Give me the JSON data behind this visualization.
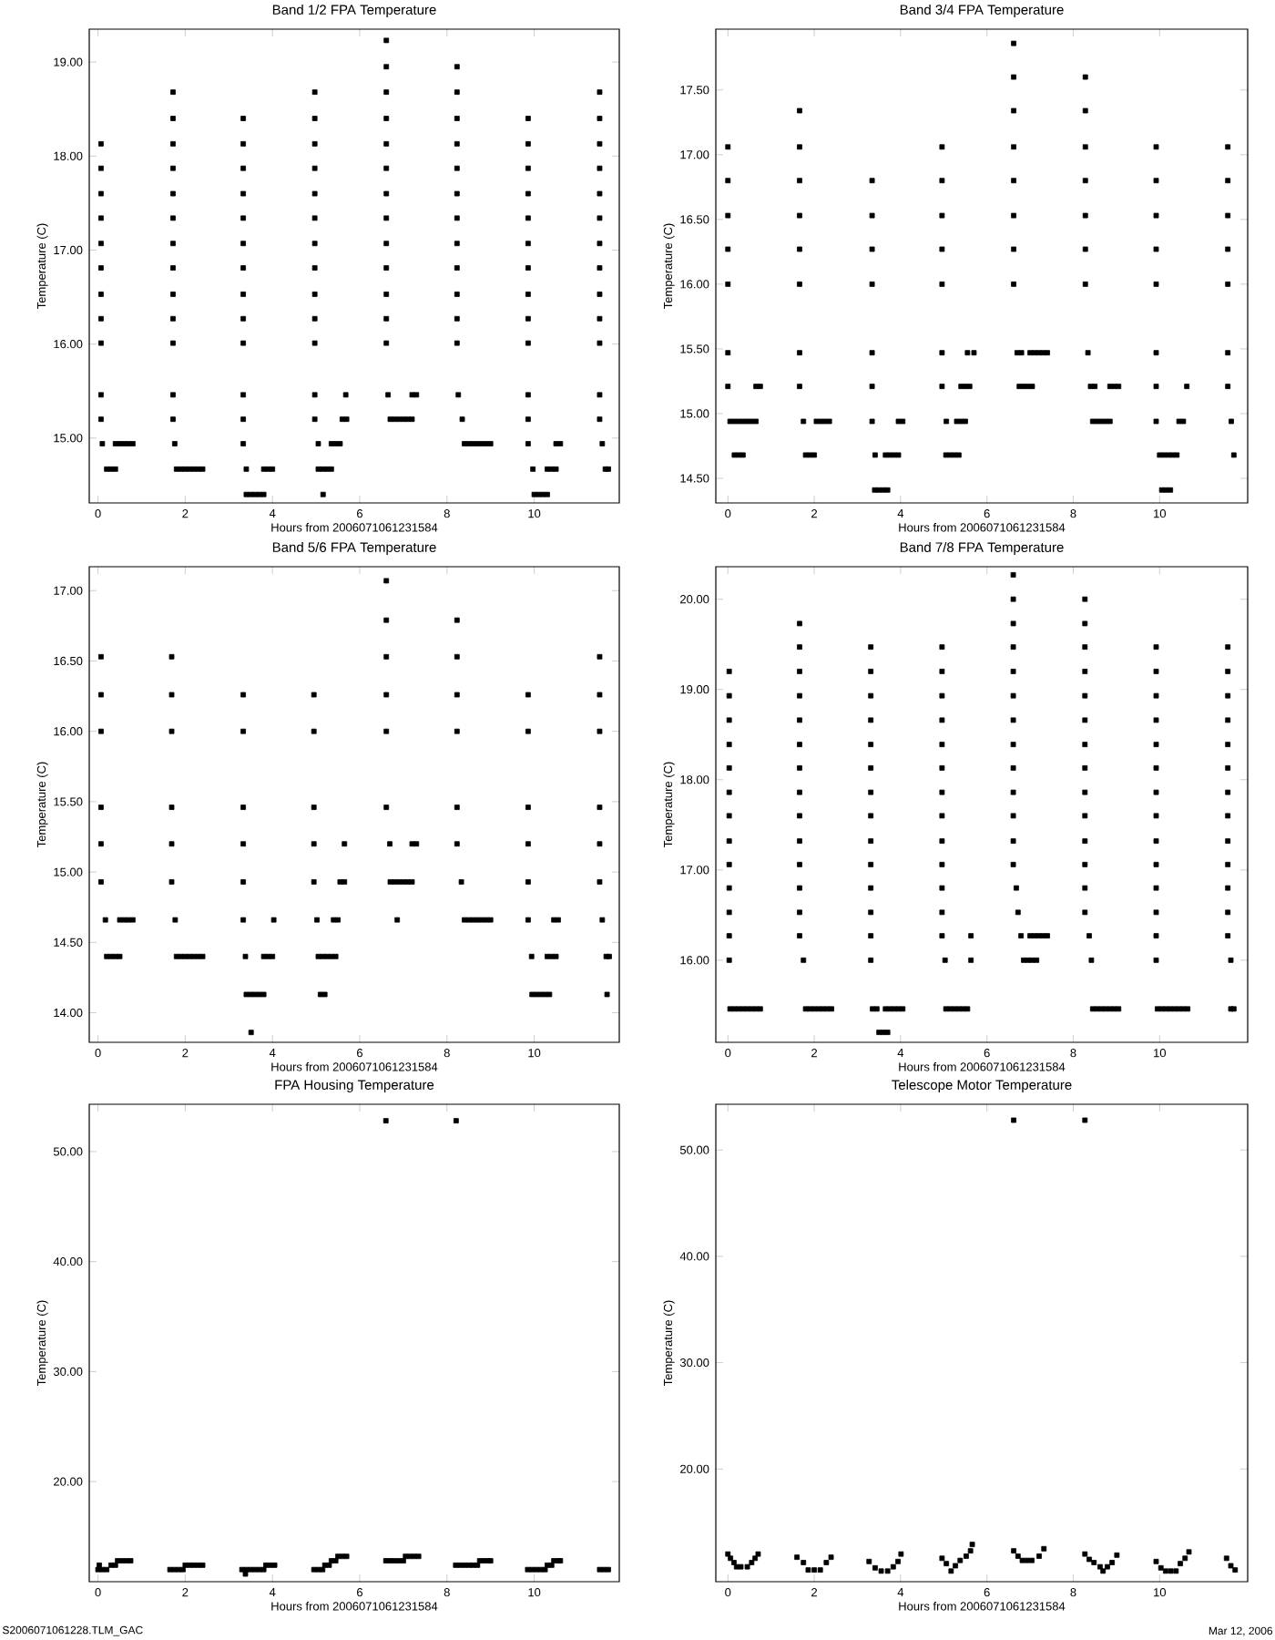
{
  "chart_data": [
    {
      "type": "scatter",
      "title": "Band 1/2 FPA Temperature",
      "xlabel": "Hours from 2006071061231584",
      "ylabel": "Temperature (C)",
      "color": "#000000",
      "marker": "square",
      "xlim": [
        -0.2,
        11.95
      ],
      "xticks": [
        0,
        2,
        4,
        6,
        8,
        10
      ],
      "ylim": [
        14.31,
        19.35
      ],
      "yticks": [
        {
          "value": 15,
          "label": "15.00"
        },
        {
          "value": 16,
          "label": "16.00"
        },
        {
          "value": 17,
          "label": "17.00"
        },
        {
          "value": 18,
          "label": "18.00"
        },
        {
          "value": 19,
          "label": "19.00"
        }
      ],
      "x": [
        0.07,
        0.07,
        0.07,
        0.07,
        0.07,
        0.07,
        0.07,
        0.07,
        0.07,
        0.07,
        0.07,
        0.1,
        0.4,
        0.5,
        0.6,
        0.7,
        0.8,
        0.2,
        0.3,
        0.4,
        1.72,
        1.72,
        1.72,
        1.72,
        1.72,
        1.72,
        1.72,
        1.72,
        1.72,
        1.72,
        1.72,
        1.72,
        1.72,
        1.76,
        1.8,
        1.9,
        2.0,
        2.1,
        2.2,
        2.3,
        2.4,
        3.33,
        3.33,
        3.33,
        3.33,
        3.33,
        3.33,
        3.33,
        3.33,
        3.33,
        3.33,
        3.33,
        3.33,
        3.33,
        3.4,
        3.8,
        3.9,
        4.0,
        3.4,
        3.5,
        3.6,
        3.7,
        3.8,
        4.97,
        4.97,
        4.97,
        4.97,
        4.97,
        4.97,
        4.97,
        4.97,
        4.97,
        4.97,
        4.97,
        4.97,
        4.97,
        5.05,
        5.35,
        5.45,
        5.55,
        5.6,
        5.7,
        5.68,
        5.05,
        5.15,
        5.25,
        5.35,
        5.16,
        6.61,
        6.61,
        6.61,
        6.61,
        6.61,
        6.61,
        6.61,
        6.61,
        6.61,
        6.61,
        6.61,
        6.61,
        6.61,
        6.65,
        7.2,
        7.3,
        6.7,
        6.8,
        6.9,
        7.0,
        7.1,
        7.2,
        8.23,
        8.23,
        8.23,
        8.23,
        8.23,
        8.23,
        8.23,
        8.23,
        8.23,
        8.23,
        8.23,
        8.23,
        8.26,
        8.35,
        8.4,
        8.5,
        8.6,
        8.7,
        8.8,
        8.9,
        9.0,
        9.86,
        9.86,
        9.86,
        9.86,
        9.86,
        9.86,
        9.86,
        9.86,
        9.86,
        9.86,
        9.86,
        9.86,
        9.86,
        9.97,
        10.3,
        10.4,
        10.5,
        10.5,
        10.6,
        10.0,
        10.1,
        10.2,
        10.3,
        11.5,
        11.5,
        11.5,
        11.5,
        11.5,
        11.5,
        11.5,
        11.5,
        11.5,
        11.5,
        11.5,
        11.5,
        11.5,
        11.56,
        11.63,
        11.7
      ],
      "values": [
        18.13,
        17.87,
        17.6,
        17.34,
        17.07,
        16.81,
        16.53,
        16.27,
        16.01,
        15.46,
        15.2,
        14.94,
        14.94,
        14.94,
        14.94,
        14.94,
        14.94,
        14.67,
        14.67,
        14.67,
        18.68,
        18.4,
        18.13,
        17.87,
        17.6,
        17.34,
        17.07,
        16.81,
        16.53,
        16.27,
        16.01,
        15.46,
        15.2,
        14.94,
        14.67,
        14.67,
        14.67,
        14.67,
        14.67,
        14.67,
        14.67,
        18.4,
        18.13,
        17.87,
        17.6,
        17.34,
        17.07,
        16.81,
        16.53,
        16.27,
        16.01,
        15.46,
        15.2,
        14.94,
        14.67,
        14.67,
        14.67,
        14.67,
        14.4,
        14.4,
        14.4,
        14.4,
        14.4,
        18.68,
        18.4,
        18.13,
        17.87,
        17.6,
        17.34,
        17.07,
        16.81,
        16.53,
        16.27,
        16.01,
        15.46,
        15.2,
        14.94,
        14.94,
        14.94,
        14.94,
        15.2,
        15.2,
        15.46,
        14.67,
        14.67,
        14.67,
        14.67,
        14.4,
        19.23,
        18.95,
        18.68,
        18.4,
        18.13,
        17.87,
        17.6,
        17.34,
        17.07,
        16.81,
        16.53,
        16.27,
        16.01,
        15.46,
        15.46,
        15.46,
        15.2,
        15.2,
        15.2,
        15.2,
        15.2,
        15.2,
        18.95,
        18.68,
        18.4,
        18.13,
        17.87,
        17.6,
        17.34,
        17.07,
        16.81,
        16.53,
        16.27,
        16.01,
        15.46,
        15.2,
        14.94,
        14.94,
        14.94,
        14.94,
        14.94,
        14.94,
        14.94,
        18.4,
        18.13,
        17.87,
        17.6,
        17.34,
        17.07,
        16.81,
        16.53,
        16.27,
        16.01,
        15.46,
        15.2,
        14.94,
        14.67,
        14.67,
        14.67,
        14.67,
        14.94,
        14.94,
        14.4,
        14.4,
        14.4,
        14.4,
        18.68,
        18.4,
        18.13,
        17.87,
        17.6,
        17.34,
        17.07,
        16.81,
        16.53,
        16.27,
        16.01,
        15.46,
        15.2,
        14.94,
        14.67,
        14.67
      ]
    },
    {
      "type": "scatter",
      "title": "Band 3/4 FPA Temperature",
      "xlabel": "Hours from 2006071061231584",
      "ylabel": "Temperature (C)",
      "color": "#000000",
      "marker": "square",
      "xlim": [
        -0.28,
        12.04
      ],
      "xticks": [
        0,
        2,
        4,
        6,
        8,
        10
      ],
      "ylim": [
        14.31,
        17.97
      ],
      "yticks": [
        {
          "value": 14.5,
          "label": "14.50"
        },
        {
          "value": 15,
          "label": "15.00"
        },
        {
          "value": 15.5,
          "label": "15.50"
        },
        {
          "value": 16,
          "label": "16.00"
        },
        {
          "value": 16.5,
          "label": "16.50"
        },
        {
          "value": 17,
          "label": "17.00"
        },
        {
          "value": 17.5,
          "label": "17.50"
        }
      ],
      "x": [
        0.0,
        0.0,
        0.0,
        0.0,
        0.0,
        0.0,
        0.0,
        0.05,
        0.15,
        0.25,
        0.35,
        0.45,
        0.55,
        0.65,
        0.65,
        0.75,
        0.15,
        0.25,
        0.35,
        1.66,
        1.66,
        1.66,
        1.66,
        1.66,
        1.66,
        1.66,
        1.66,
        1.75,
        2.05,
        2.15,
        2.25,
        2.35,
        1.8,
        1.9,
        2.0,
        3.34,
        3.34,
        3.34,
        3.34,
        3.34,
        3.34,
        3.34,
        3.41,
        3.65,
        3.75,
        3.85,
        3.95,
        3.95,
        4.05,
        3.4,
        3.5,
        3.6,
        3.7,
        4.96,
        4.96,
        4.96,
        4.96,
        4.96,
        4.96,
        4.96,
        5.06,
        5.55,
        5.7,
        5.4,
        5.5,
        5.6,
        5.3,
        5.4,
        5.5,
        5.05,
        5.15,
        5.25,
        5.35,
        6.62,
        6.62,
        6.62,
        6.62,
        6.62,
        6.62,
        6.62,
        6.62,
        6.7,
        6.8,
        7.0,
        7.1,
        7.2,
        7.3,
        7.4,
        6.75,
        6.85,
        6.95,
        7.05,
        8.28,
        8.28,
        8.28,
        8.28,
        8.28,
        8.28,
        8.28,
        8.34,
        8.4,
        8.5,
        8.85,
        8.95,
        9.05,
        8.45,
        8.55,
        8.65,
        8.75,
        8.85,
        9.92,
        9.92,
        9.92,
        9.92,
        9.92,
        9.92,
        9.92,
        9.92,
        10.0,
        10.1,
        10.2,
        10.3,
        10.4,
        10.45,
        10.55,
        10.63,
        10.05,
        10.15,
        10.25,
        11.58,
        11.58,
        11.58,
        11.58,
        11.58,
        11.58,
        11.58,
        11.66,
        11.72
      ],
      "values": [
        17.06,
        16.8,
        16.53,
        16.27,
        16.0,
        15.47,
        15.21,
        14.94,
        14.94,
        14.94,
        14.94,
        14.94,
        14.94,
        14.94,
        15.21,
        15.21,
        14.68,
        14.68,
        14.68,
        17.34,
        17.06,
        16.8,
        16.53,
        16.27,
        16.0,
        15.47,
        15.21,
        14.94,
        14.94,
        14.94,
        14.94,
        14.94,
        14.68,
        14.68,
        14.68,
        16.8,
        16.53,
        16.27,
        16.0,
        15.47,
        15.21,
        14.94,
        14.68,
        14.68,
        14.68,
        14.68,
        14.68,
        14.94,
        14.94,
        14.41,
        14.41,
        14.41,
        14.41,
        17.06,
        16.8,
        16.53,
        16.27,
        16.0,
        15.47,
        15.21,
        14.94,
        15.47,
        15.47,
        15.21,
        15.21,
        15.21,
        14.94,
        14.94,
        14.94,
        14.68,
        14.68,
        14.68,
        14.68,
        17.86,
        17.6,
        17.34,
        17.06,
        16.8,
        16.53,
        16.27,
        16.0,
        15.47,
        15.47,
        15.47,
        15.47,
        15.47,
        15.47,
        15.47,
        15.21,
        15.21,
        15.21,
        15.21,
        17.6,
        17.34,
        17.06,
        16.8,
        16.53,
        16.27,
        16.0,
        15.47,
        15.21,
        15.21,
        15.21,
        15.21,
        15.21,
        14.94,
        14.94,
        14.94,
        14.94,
        14.94,
        17.06,
        16.8,
        16.53,
        16.27,
        16.0,
        15.47,
        15.21,
        14.94,
        14.68,
        14.68,
        14.68,
        14.68,
        14.68,
        14.94,
        14.94,
        15.21,
        14.41,
        14.41,
        14.41,
        17.06,
        16.8,
        16.53,
        16.27,
        16.0,
        15.47,
        15.21,
        14.94,
        14.68
      ]
    },
    {
      "type": "scatter",
      "title": "Band 5/6 FPA Temperature",
      "xlabel": "Hours from 2006071061231584",
      "ylabel": "Temperature (C)",
      "color": "#000000",
      "marker": "square",
      "xlim": [
        -0.2,
        11.95
      ],
      "xticks": [
        0,
        2,
        4,
        6,
        8,
        10
      ],
      "ylim": [
        13.79,
        17.17
      ],
      "yticks": [
        {
          "value": 14,
          "label": "14.00"
        },
        {
          "value": 14.5,
          "label": "14.50"
        },
        {
          "value": 15,
          "label": "15.00"
        },
        {
          "value": 15.5,
          "label": "15.50"
        },
        {
          "value": 16,
          "label": "16.00"
        },
        {
          "value": 16.5,
          "label": "16.50"
        },
        {
          "value": 17,
          "label": "17.00"
        }
      ],
      "x": [
        0.07,
        0.07,
        0.07,
        0.07,
        0.07,
        0.07,
        0.17,
        0.5,
        0.6,
        0.7,
        0.8,
        0.2,
        0.3,
        0.4,
        0.5,
        1.69,
        1.69,
        1.69,
        1.69,
        1.69,
        1.69,
        1.77,
        1.8,
        1.9,
        2.0,
        2.1,
        2.2,
        2.3,
        2.4,
        3.33,
        3.33,
        3.33,
        3.33,
        3.33,
        3.33,
        3.38,
        3.8,
        3.9,
        4.0,
        4.03,
        3.4,
        3.5,
        3.6,
        3.7,
        3.8,
        3.51,
        4.95,
        4.95,
        4.95,
        4.95,
        4.95,
        5.02,
        5.4,
        5.5,
        5.55,
        5.65,
        5.65,
        5.05,
        5.15,
        5.25,
        5.35,
        5.45,
        5.1,
        5.2,
        6.61,
        6.61,
        6.61,
        6.61,
        6.61,
        6.61,
        6.69,
        7.2,
        7.3,
        6.7,
        6.8,
        6.9,
        7.0,
        7.1,
        7.2,
        6.86,
        8.23,
        8.23,
        8.23,
        8.23,
        8.23,
        8.23,
        8.33,
        8.4,
        8.5,
        8.6,
        8.7,
        8.8,
        8.9,
        9.0,
        9.86,
        9.86,
        9.86,
        9.86,
        9.86,
        9.86,
        9.94,
        10.3,
        10.4,
        10.5,
        10.45,
        10.55,
        9.95,
        10.05,
        10.15,
        10.25,
        10.35,
        11.5,
        11.5,
        11.5,
        11.5,
        11.5,
        11.5,
        11.56,
        11.65,
        11.72,
        11.67
      ],
      "values": [
        16.53,
        16.26,
        16.0,
        15.46,
        15.2,
        14.93,
        14.66,
        14.66,
        14.66,
        14.66,
        14.66,
        14.4,
        14.4,
        14.4,
        14.4,
        16.53,
        16.26,
        16.0,
        15.46,
        15.2,
        14.93,
        14.66,
        14.4,
        14.4,
        14.4,
        14.4,
        14.4,
        14.4,
        14.4,
        16.26,
        16.0,
        15.46,
        15.2,
        14.93,
        14.66,
        14.4,
        14.4,
        14.4,
        14.4,
        14.66,
        14.13,
        14.13,
        14.13,
        14.13,
        14.13,
        13.86,
        16.26,
        16.0,
        15.46,
        15.2,
        14.93,
        14.66,
        14.66,
        14.66,
        14.93,
        14.93,
        15.2,
        14.4,
        14.4,
        14.4,
        14.4,
        14.4,
        14.13,
        14.13,
        17.07,
        16.79,
        16.53,
        16.26,
        16.0,
        15.46,
        15.2,
        15.2,
        15.2,
        14.93,
        14.93,
        14.93,
        14.93,
        14.93,
        14.93,
        14.66,
        16.79,
        16.53,
        16.26,
        16.0,
        15.46,
        15.2,
        14.93,
        14.66,
        14.66,
        14.66,
        14.66,
        14.66,
        14.66,
        14.66,
        16.26,
        16.0,
        15.46,
        15.2,
        14.93,
        14.66,
        14.4,
        14.4,
        14.4,
        14.4,
        14.66,
        14.66,
        14.13,
        14.13,
        14.13,
        14.13,
        14.13,
        16.53,
        16.26,
        16.0,
        15.46,
        15.2,
        14.93,
        14.66,
        14.4,
        14.4,
        14.13
      ]
    },
    {
      "type": "scatter",
      "title": "Band 7/8 FPA Temperature",
      "xlabel": "Hours from 2006071061231584",
      "ylabel": "Temperature (C)",
      "color": "#000000",
      "marker": "square",
      "xlim": [
        -0.28,
        12.04
      ],
      "xticks": [
        0,
        2,
        4,
        6,
        8,
        10
      ],
      "ylim": [
        15.09,
        20.36
      ],
      "yticks": [
        {
          "value": 16,
          "label": "16.00"
        },
        {
          "value": 17,
          "label": "17.00"
        },
        {
          "value": 18,
          "label": "18.00"
        },
        {
          "value": 19,
          "label": "19.00"
        },
        {
          "value": 20,
          "label": "20.00"
        }
      ],
      "x": [
        0.03,
        0.03,
        0.03,
        0.03,
        0.03,
        0.03,
        0.03,
        0.03,
        0.03,
        0.03,
        0.03,
        0.03,
        0.03,
        0.05,
        0.15,
        0.25,
        0.35,
        0.45,
        0.55,
        0.65,
        0.75,
        1.66,
        1.66,
        1.66,
        1.66,
        1.66,
        1.66,
        1.66,
        1.66,
        1.66,
        1.66,
        1.66,
        1.66,
        1.66,
        1.66,
        1.75,
        1.8,
        1.9,
        2.0,
        2.1,
        2.2,
        2.3,
        2.4,
        3.31,
        3.31,
        3.31,
        3.31,
        3.31,
        3.31,
        3.31,
        3.31,
        3.31,
        3.31,
        3.31,
        3.31,
        3.31,
        3.31,
        3.35,
        3.45,
        3.65,
        3.75,
        3.85,
        3.95,
        4.05,
        3.5,
        3.6,
        3.7,
        4.96,
        4.96,
        4.96,
        4.96,
        4.96,
        4.96,
        4.96,
        4.96,
        4.96,
        4.96,
        4.96,
        4.96,
        4.96,
        5.03,
        5.05,
        5.15,
        5.25,
        5.35,
        5.45,
        5.55,
        5.63,
        5.63,
        6.61,
        6.61,
        6.61,
        6.61,
        6.61,
        6.61,
        6.61,
        6.61,
        6.61,
        6.61,
        6.61,
        6.61,
        6.61,
        6.68,
        6.72,
        6.79,
        7.0,
        7.1,
        7.2,
        7.3,
        7.4,
        6.85,
        6.95,
        7.05,
        7.15,
        8.27,
        8.27,
        8.27,
        8.27,
        8.27,
        8.27,
        8.27,
        8.27,
        8.27,
        8.27,
        8.27,
        8.27,
        8.27,
        8.27,
        8.37,
        8.42,
        8.45,
        8.55,
        8.65,
        8.75,
        8.85,
        8.95,
        9.05,
        9.92,
        9.92,
        9.92,
        9.92,
        9.92,
        9.92,
        9.92,
        9.92,
        9.92,
        9.92,
        9.92,
        9.92,
        9.92,
        9.92,
        9.95,
        10.05,
        10.15,
        10.25,
        10.35,
        10.45,
        10.55,
        10.65,
        11.58,
        11.58,
        11.58,
        11.58,
        11.58,
        11.58,
        11.58,
        11.58,
        11.58,
        11.58,
        11.58,
        11.58,
        11.58,
        11.65,
        11.65,
        11.72
      ],
      "values": [
        19.2,
        18.93,
        18.66,
        18.39,
        18.13,
        17.86,
        17.6,
        17.32,
        17.06,
        16.8,
        16.53,
        16.27,
        16.0,
        15.46,
        15.46,
        15.46,
        15.46,
        15.46,
        15.46,
        15.46,
        15.46,
        19.73,
        19.47,
        19.2,
        18.93,
        18.66,
        18.39,
        18.13,
        17.86,
        17.6,
        17.32,
        17.06,
        16.8,
        16.53,
        16.27,
        16.0,
        15.46,
        15.46,
        15.46,
        15.46,
        15.46,
        15.46,
        15.46,
        19.47,
        19.2,
        18.93,
        18.66,
        18.39,
        18.13,
        17.86,
        17.6,
        17.32,
        17.06,
        16.8,
        16.53,
        16.27,
        16.0,
        15.46,
        15.46,
        15.46,
        15.46,
        15.46,
        15.46,
        15.46,
        15.2,
        15.2,
        15.2,
        19.47,
        19.2,
        18.93,
        18.66,
        18.39,
        18.13,
        17.86,
        17.6,
        17.32,
        17.06,
        16.8,
        16.53,
        16.27,
        16.0,
        15.46,
        15.46,
        15.46,
        15.46,
        15.46,
        15.46,
        16.27,
        16.0,
        20.27,
        20.0,
        19.73,
        19.47,
        19.2,
        18.93,
        18.66,
        18.39,
        18.13,
        17.86,
        17.6,
        17.32,
        17.06,
        16.8,
        16.53,
        16.27,
        16.27,
        16.27,
        16.27,
        16.27,
        16.27,
        16.0,
        16.0,
        16.0,
        16.0,
        20.0,
        19.73,
        19.47,
        19.2,
        18.93,
        18.66,
        18.39,
        18.13,
        17.86,
        17.6,
        17.32,
        17.06,
        16.8,
        16.53,
        16.27,
        16.0,
        15.46,
        15.46,
        15.46,
        15.46,
        15.46,
        15.46,
        15.46,
        19.47,
        19.2,
        18.93,
        18.66,
        18.39,
        18.13,
        17.86,
        17.6,
        17.32,
        17.06,
        16.8,
        16.53,
        16.27,
        16.0,
        15.46,
        15.46,
        15.46,
        15.46,
        15.46,
        15.46,
        15.46,
        15.46,
        19.47,
        19.2,
        18.93,
        18.66,
        18.39,
        18.13,
        17.86,
        17.6,
        17.32,
        17.06,
        16.8,
        16.53,
        16.27,
        16.0,
        15.46,
        15.46
      ]
    },
    {
      "type": "scatter",
      "title": "FPA Housing Temperature",
      "xlabel": "Hours from 2006071061231584",
      "ylabel": "Temperature (C)",
      "color": "#000000",
      "marker": "square",
      "annotations": [
        "S2006071061228.TLM_GAC"
      ],
      "xlim": [
        -0.2,
        11.95
      ],
      "xticks": [
        0,
        2,
        4,
        6,
        8,
        10
      ],
      "ylim": [
        10.9,
        54.3
      ],
      "yticks": [
        {
          "value": 20,
          "label": "20.00"
        },
        {
          "value": 30,
          "label": "30.00"
        },
        {
          "value": 40,
          "label": "40.00"
        },
        {
          "value": 50,
          "label": "50.00"
        }
      ],
      "x": [
        6.6,
        8.21,
        0.0,
        0.1,
        0.2,
        0.03,
        0.3,
        0.4,
        0.45,
        0.55,
        0.65,
        0.75,
        1.65,
        1.75,
        1.85,
        1.95,
        2.0,
        2.1,
        2.2,
        2.3,
        2.4,
        3.3,
        3.4,
        3.5,
        3.6,
        3.7,
        3.8,
        3.38,
        3.85,
        3.95,
        4.05,
        4.95,
        5.05,
        5.15,
        5.2,
        5.3,
        5.35,
        5.45,
        5.5,
        5.6,
        5.7,
        6.6,
        6.7,
        6.8,
        6.9,
        7.0,
        7.05,
        7.15,
        7.25,
        7.35,
        8.2,
        8.3,
        8.4,
        8.5,
        8.6,
        8.7,
        8.75,
        8.85,
        8.95,
        9.0,
        9.85,
        9.95,
        10.05,
        10.15,
        10.25,
        10.3,
        10.4,
        10.45,
        10.55,
        10.6,
        11.5,
        11.6,
        11.7
      ],
      "values": [
        52.8,
        52.8,
        12.0,
        12.0,
        12.0,
        12.4,
        12.4,
        12.4,
        12.8,
        12.8,
        12.8,
        12.8,
        12.0,
        12.0,
        12.0,
        12.0,
        12.4,
        12.4,
        12.4,
        12.4,
        12.4,
        12.0,
        12.0,
        12.0,
        12.0,
        12.0,
        12.0,
        11.6,
        12.4,
        12.4,
        12.4,
        12.0,
        12.0,
        12.0,
        12.4,
        12.4,
        12.8,
        12.8,
        13.2,
        13.2,
        13.2,
        12.8,
        12.8,
        12.8,
        12.8,
        12.8,
        13.2,
        13.2,
        13.2,
        13.2,
        12.4,
        12.4,
        12.4,
        12.4,
        12.4,
        12.4,
        12.8,
        12.8,
        12.8,
        12.8,
        12.0,
        12.0,
        12.0,
        12.0,
        12.0,
        12.4,
        12.4,
        12.8,
        12.8,
        12.8,
        12.0,
        12.0,
        12.0
      ]
    },
    {
      "type": "scatter",
      "title": "Telescope Motor Temperature",
      "xlabel": "Hours from 2006071061231584",
      "ylabel": "Temperature (C)",
      "color": "#000000",
      "marker": "square",
      "annotations": [
        "Mar 12, 2006"
      ],
      "xlim": [
        -0.28,
        12.04
      ],
      "xticks": [
        0,
        2,
        4,
        6,
        8,
        10
      ],
      "ylim": [
        9.4,
        54.3
      ],
      "yticks": [
        {
          "value": 20,
          "label": "20.00"
        },
        {
          "value": 30,
          "label": "30.00"
        },
        {
          "value": 40,
          "label": "40.00"
        },
        {
          "value": 50,
          "label": "50.00"
        }
      ],
      "x": [
        6.62,
        8.27,
        0.0,
        0.06,
        0.14,
        0.2,
        0.3,
        0.45,
        0.55,
        0.63,
        0.7,
        1.6,
        1.75,
        1.86,
        2.0,
        2.14,
        2.28,
        2.39,
        3.27,
        3.41,
        3.55,
        3.7,
        3.83,
        3.94,
        4.01,
        4.96,
        5.06,
        5.17,
        5.27,
        5.38,
        5.52,
        5.62,
        5.66,
        6.62,
        6.72,
        6.82,
        6.93,
        7.04,
        7.21,
        7.32,
        8.27,
        8.37,
        8.48,
        8.62,
        8.69,
        8.79,
        8.9,
        9.01,
        9.92,
        10.03,
        10.14,
        10.26,
        10.38,
        10.48,
        10.59,
        10.68,
        11.55,
        11.65,
        11.75
      ],
      "values": [
        52.8,
        52.8,
        12.0,
        11.6,
        11.2,
        10.8,
        10.8,
        10.8,
        11.2,
        11.6,
        12.0,
        11.7,
        11.2,
        10.5,
        10.5,
        10.5,
        11.2,
        11.7,
        11.3,
        10.7,
        10.4,
        10.4,
        10.8,
        11.3,
        12.0,
        11.6,
        11.1,
        10.4,
        10.9,
        11.4,
        11.8,
        12.3,
        12.9,
        12.3,
        11.8,
        11.4,
        11.4,
        11.4,
        11.8,
        12.5,
        12.0,
        11.5,
        11.2,
        10.8,
        10.4,
        10.8,
        11.2,
        11.9,
        11.3,
        10.7,
        10.4,
        10.4,
        10.4,
        11.1,
        11.6,
        12.2,
        11.6,
        10.9,
        10.5
      ]
    }
  ]
}
